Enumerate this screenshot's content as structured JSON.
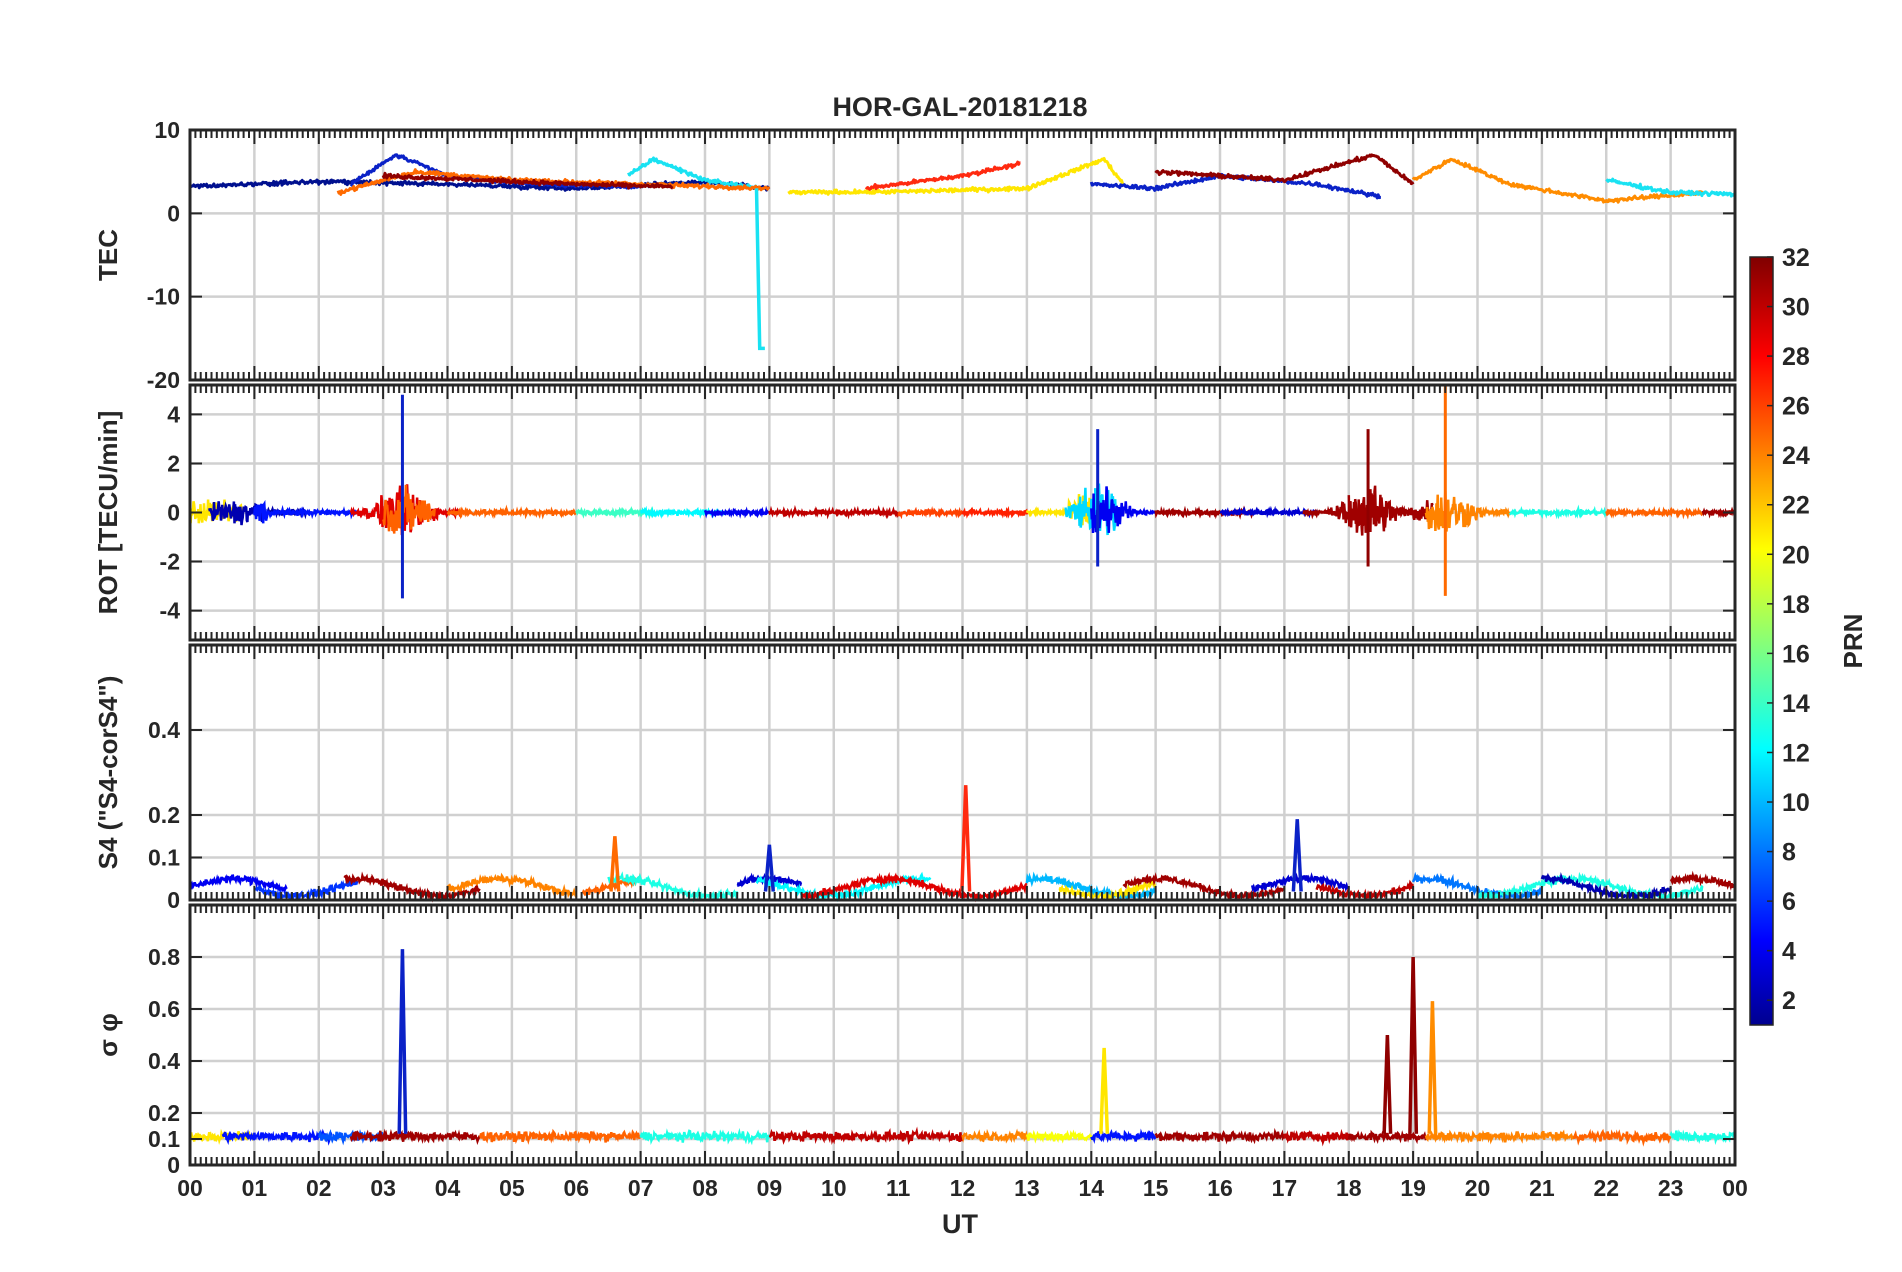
{
  "chart_data": {
    "type": "line",
    "title": "HOR-GAL-20181218",
    "xlabel": "UT",
    "x_tick_labels": [
      "00",
      "01",
      "02",
      "03",
      "04",
      "05",
      "06",
      "07",
      "08",
      "09",
      "10",
      "11",
      "12",
      "13",
      "14",
      "15",
      "16",
      "17",
      "18",
      "19",
      "20",
      "21",
      "22",
      "23",
      "00"
    ],
    "xlim_hours": [
      0,
      24
    ],
    "grid": true,
    "colormap": "jet",
    "colorbar": {
      "label": "PRN",
      "range": [
        1,
        32
      ],
      "tick_labels": [
        "2",
        "4",
        "6",
        "8",
        "10",
        "12",
        "14",
        "16",
        "18",
        "20",
        "22",
        "24",
        "26",
        "28",
        "30",
        "32"
      ]
    },
    "panels": [
      {
        "id": "tec",
        "ylabel": "TEC",
        "ylim": [
          -20,
          10
        ],
        "y_ticks": [
          10,
          0,
          -10,
          -20
        ],
        "y_tick_labels": [
          "10",
          "0",
          "-10",
          "-20"
        ],
        "notable": [
          {
            "x_hours": 8.85,
            "y": -16.2,
            "color": "#19E2F2",
            "note": "sharp drop"
          }
        ],
        "series": [
          {
            "color": "#00108F",
            "x": [
              0,
              2,
              4,
              6,
              8,
              9
            ],
            "y": [
              3.2,
              3.8,
              3.5,
              3.0,
              3.8,
              3.0
            ]
          },
          {
            "color": "#0B22C7",
            "x": [
              2.5,
              3.2,
              4,
              5.5,
              7
            ],
            "y": [
              3.5,
              7.0,
              4.5,
              3.5,
              3.2
            ]
          },
          {
            "color": "#19E2F2",
            "x": [
              6.8,
              7.2,
              8,
              8.8
            ],
            "y": [
              4.5,
              6.5,
              4.0,
              3.0
            ]
          },
          {
            "color": "#FF6A00",
            "x": [
              2.3,
              3.5,
              5,
              7,
              9
            ],
            "y": [
              2.5,
              5.0,
              4.0,
              3.5,
              3.0
            ]
          },
          {
            "color": "#8F0000",
            "x": [
              3,
              4.5,
              6,
              7.5
            ],
            "y": [
              4.5,
              4.0,
              3.5,
              3.2
            ]
          },
          {
            "color": "#FFE600",
            "x": [
              9.3,
              11,
              13,
              14.2,
              14.5
            ],
            "y": [
              2.5,
              2.6,
              3.0,
              6.5,
              3.5
            ]
          },
          {
            "color": "#FF2A10",
            "x": [
              10.5,
              12,
              12.9
            ],
            "y": [
              3.0,
              4.5,
              6.0
            ]
          },
          {
            "color": "#0B22C7",
            "x": [
              14,
              15,
              16,
              17.5,
              18.5
            ],
            "y": [
              3.5,
              3.0,
              4.5,
              3.5,
              2.0
            ]
          },
          {
            "color": "#8F0000",
            "x": [
              15,
              17,
              18.4,
              19
            ],
            "y": [
              5.0,
              4.0,
              7.0,
              3.5
            ]
          },
          {
            "color": "#FF8C00",
            "x": [
              19,
              19.6,
              20.5,
              22,
              23.5
            ],
            "y": [
              4.0,
              6.5,
              3.5,
              1.5,
              2.5
            ]
          },
          {
            "color": "#19E2F2",
            "x": [
              22,
              23,
              24
            ],
            "y": [
              4.0,
              2.5,
              2.3
            ]
          }
        ]
      },
      {
        "id": "rot",
        "ylabel": "ROT [TECU/min]",
        "ylim": [
          -5.2,
          5.2
        ],
        "y_ticks": [
          4,
          2,
          0,
          -2,
          -4
        ],
        "y_tick_labels": [
          "4",
          "2",
          "0",
          "-2",
          "-4"
        ],
        "spikes": [
          {
            "x_hours": 3.3,
            "min": -3.5,
            "max": 4.8,
            "color": "#0B22C7"
          },
          {
            "x_hours": 14.1,
            "min": -2.2,
            "max": 3.4,
            "color": "#0B22C7"
          },
          {
            "x_hours": 18.3,
            "min": -2.2,
            "max": 3.4,
            "color": "#8F0000"
          },
          {
            "x_hours": 19.5,
            "min": -3.4,
            "max": 5.3,
            "color": "#FF6A00"
          }
        ]
      },
      {
        "id": "s4",
        "ylabel": "S4 (\"S4-corS4\")",
        "ylim": [
          0,
          0.6
        ],
        "y_ticks": [
          0.4,
          0.2,
          0.1,
          0
        ],
        "y_tick_labels": [
          "0.4",
          "0.2",
          "0.1",
          "0"
        ],
        "spikes": [
          {
            "x_hours": 12.05,
            "value": 0.27,
            "color": "#FF2A10"
          },
          {
            "x_hours": 17.2,
            "value": 0.19,
            "color": "#0B22C7"
          },
          {
            "x_hours": 6.6,
            "value": 0.15,
            "color": "#FF6A00"
          },
          {
            "x_hours": 9.0,
            "value": 0.13,
            "color": "#0B22C7"
          }
        ]
      },
      {
        "id": "sigma",
        "ylabel": "σ φ",
        "ylim": [
          0,
          1.0
        ],
        "y_ticks": [
          0.8,
          0.6,
          0.4,
          0.2,
          0.1,
          0
        ],
        "y_tick_labels": [
          "0.8",
          "0.6",
          "0.4",
          "0.2",
          "0.1",
          "0"
        ],
        "spikes": [
          {
            "x_hours": 3.3,
            "value": 0.83,
            "color": "#0B22C7"
          },
          {
            "x_hours": 19.0,
            "value": 0.8,
            "color": "#8F0000"
          },
          {
            "x_hours": 19.3,
            "value": 0.63,
            "color": "#FF8C00"
          },
          {
            "x_hours": 14.2,
            "value": 0.45,
            "color": "#FFE600"
          },
          {
            "x_hours": 18.6,
            "value": 0.5,
            "color": "#8F0000"
          }
        ]
      }
    ]
  }
}
